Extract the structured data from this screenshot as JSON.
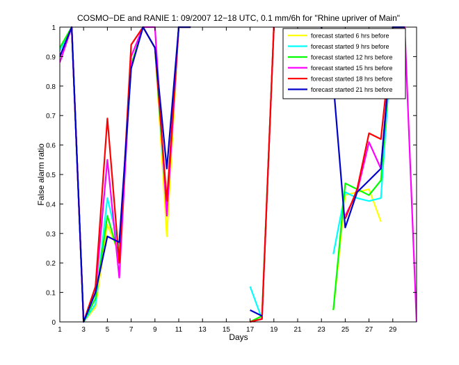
{
  "chart_data": {
    "type": "line",
    "title": "COSMO−DE and RANIE 1: 09/2007 12−18 UTC, 0.1 mm/6h for \"Rhine upriver of Main\"",
    "xlabel": "Days",
    "ylabel": "False alarm ratio",
    "xlim": [
      1,
      31
    ],
    "ylim": [
      0,
      1
    ],
    "xticks": [
      1,
      3,
      5,
      7,
      9,
      11,
      13,
      15,
      17,
      19,
      21,
      23,
      25,
      27,
      29
    ],
    "yticks": [
      0,
      0.1,
      0.2,
      0.3,
      0.4,
      0.5,
      0.6,
      0.7,
      0.8,
      0.9,
      1
    ],
    "legend_position": "top-right",
    "series": [
      {
        "name": "forecast started 6 hrs before",
        "color": "#ffff00",
        "points": [
          [
            1,
            0.93
          ],
          [
            2,
            1.0
          ],
          [
            3,
            0.0
          ],
          [
            4,
            0.05
          ],
          [
            5,
            0.33
          ],
          [
            6,
            0.23
          ],
          [
            7,
            0.87
          ],
          [
            8,
            1.0
          ],
          [
            9,
            0.93
          ],
          [
            10,
            0.29
          ],
          [
            11,
            1.0
          ],
          [
            12,
            1.0
          ],
          [
            null,
            null
          ],
          [
            17,
            0.0
          ],
          [
            18,
            0.02
          ],
          [
            19,
            1.0
          ],
          [
            null,
            null
          ],
          [
            24,
            0.04
          ],
          [
            25,
            0.43
          ],
          [
            26,
            0.44
          ],
          [
            27,
            0.45
          ],
          [
            28,
            0.34
          ],
          [
            null,
            null
          ],
          [
            28,
            0.48
          ],
          [
            29,
            1.0
          ],
          [
            30,
            1.0
          ]
        ]
      },
      {
        "name": "forecast started 9 hrs before",
        "color": "#00ffff",
        "points": [
          [
            1,
            0.92
          ],
          [
            2,
            1.0
          ],
          [
            3,
            0.0
          ],
          [
            4,
            0.06
          ],
          [
            5,
            0.42
          ],
          [
            6,
            0.25
          ],
          [
            7,
            0.87
          ],
          [
            8,
            1.0
          ],
          [
            9,
            0.93
          ],
          [
            10,
            0.37
          ],
          [
            11,
            1.0
          ],
          [
            12,
            1.0
          ],
          [
            null,
            null
          ],
          [
            17,
            0.12
          ],
          [
            18,
            0.01
          ],
          [
            19,
            1.0
          ],
          [
            null,
            null
          ],
          [
            24,
            0.23
          ],
          [
            25,
            0.44
          ],
          [
            26,
            0.42
          ],
          [
            27,
            0.41
          ],
          [
            28,
            0.42
          ],
          [
            29,
            1.0
          ],
          [
            30,
            1.0
          ]
        ]
      },
      {
        "name": "forecast started 12 hrs before",
        "color": "#00ff00",
        "points": [
          [
            1,
            0.93
          ],
          [
            2,
            1.0
          ],
          [
            3,
            0.0
          ],
          [
            4,
            0.08
          ],
          [
            5,
            0.36
          ],
          [
            6,
            0.22
          ],
          [
            7,
            0.87
          ],
          [
            8,
            1.0
          ],
          [
            9,
            0.93
          ],
          [
            10,
            0.4
          ],
          [
            11,
            1.0
          ],
          [
            12,
            1.0
          ],
          [
            null,
            null
          ],
          [
            17,
            0.0
          ],
          [
            18,
            0.02
          ],
          [
            19,
            1.0
          ],
          [
            null,
            null
          ],
          [
            24,
            0.04
          ],
          [
            25,
            0.47
          ],
          [
            26,
            0.45
          ],
          [
            27,
            0.43
          ],
          [
            28,
            0.48
          ],
          [
            29,
            1.0
          ],
          [
            30,
            1.0
          ]
        ]
      },
      {
        "name": "forecast started 15 hrs before",
        "color": "#ff00ff",
        "points": [
          [
            1,
            0.88
          ],
          [
            2,
            1.0
          ],
          [
            3,
            0.0
          ],
          [
            4,
            0.1
          ],
          [
            5,
            0.55
          ],
          [
            6,
            0.15
          ],
          [
            7,
            0.9
          ],
          [
            8,
            1.0
          ],
          [
            9,
            1.0
          ],
          [
            10,
            0.36
          ],
          [
            11,
            1.0
          ],
          [
            12,
            1.0
          ],
          [
            null,
            null
          ],
          [
            17,
            0.0
          ],
          [
            18,
            0.01
          ],
          [
            19,
            1.0
          ],
          [
            null,
            null
          ],
          [
            25,
            0.36
          ],
          [
            26,
            0.44
          ],
          [
            27,
            0.61
          ],
          [
            28,
            0.52
          ],
          [
            29,
            1.0
          ],
          [
            30,
            1.0
          ],
          [
            31,
            0.0
          ]
        ]
      },
      {
        "name": "forecast started 18 hrs before",
        "color": "#ff0000",
        "points": [
          [
            1,
            0.9
          ],
          [
            2,
            1.0
          ],
          [
            3,
            0.0
          ],
          [
            4,
            0.12
          ],
          [
            5,
            0.69
          ],
          [
            6,
            0.2
          ],
          [
            7,
            0.94
          ],
          [
            8,
            1.0
          ],
          [
            9,
            0.93
          ],
          [
            10,
            0.41
          ],
          [
            11,
            1.0
          ],
          [
            12,
            1.0
          ],
          [
            null,
            null
          ],
          [
            17,
            0.0
          ],
          [
            18,
            0.01
          ],
          [
            19,
            1.0
          ],
          [
            null,
            null
          ],
          [
            25,
            0.35
          ],
          [
            26,
            0.45
          ],
          [
            27,
            0.64
          ],
          [
            28,
            0.62
          ],
          [
            29,
            1.0
          ],
          [
            30,
            1.0
          ]
        ]
      },
      {
        "name": "forecast started 21 hrs before",
        "color": "#0000cc",
        "points": [
          [
            1,
            0.9
          ],
          [
            2,
            1.0
          ],
          [
            3,
            0.0
          ],
          [
            4,
            0.1
          ],
          [
            5,
            0.29
          ],
          [
            6,
            0.27
          ],
          [
            7,
            0.86
          ],
          [
            8,
            1.0
          ],
          [
            9,
            0.93
          ],
          [
            10,
            0.52
          ],
          [
            11,
            1.0
          ],
          [
            12,
            1.0
          ],
          [
            null,
            null
          ],
          [
            17,
            0.04
          ],
          [
            18,
            0.02
          ],
          [
            null,
            null
          ],
          [
            23,
            1.0
          ],
          [
            24,
            0.81
          ],
          [
            25,
            0.32
          ],
          [
            26,
            0.44
          ],
          [
            27,
            0.48
          ],
          [
            28,
            0.52
          ],
          [
            29,
            1.0
          ],
          [
            30,
            1.0
          ]
        ]
      }
    ]
  }
}
